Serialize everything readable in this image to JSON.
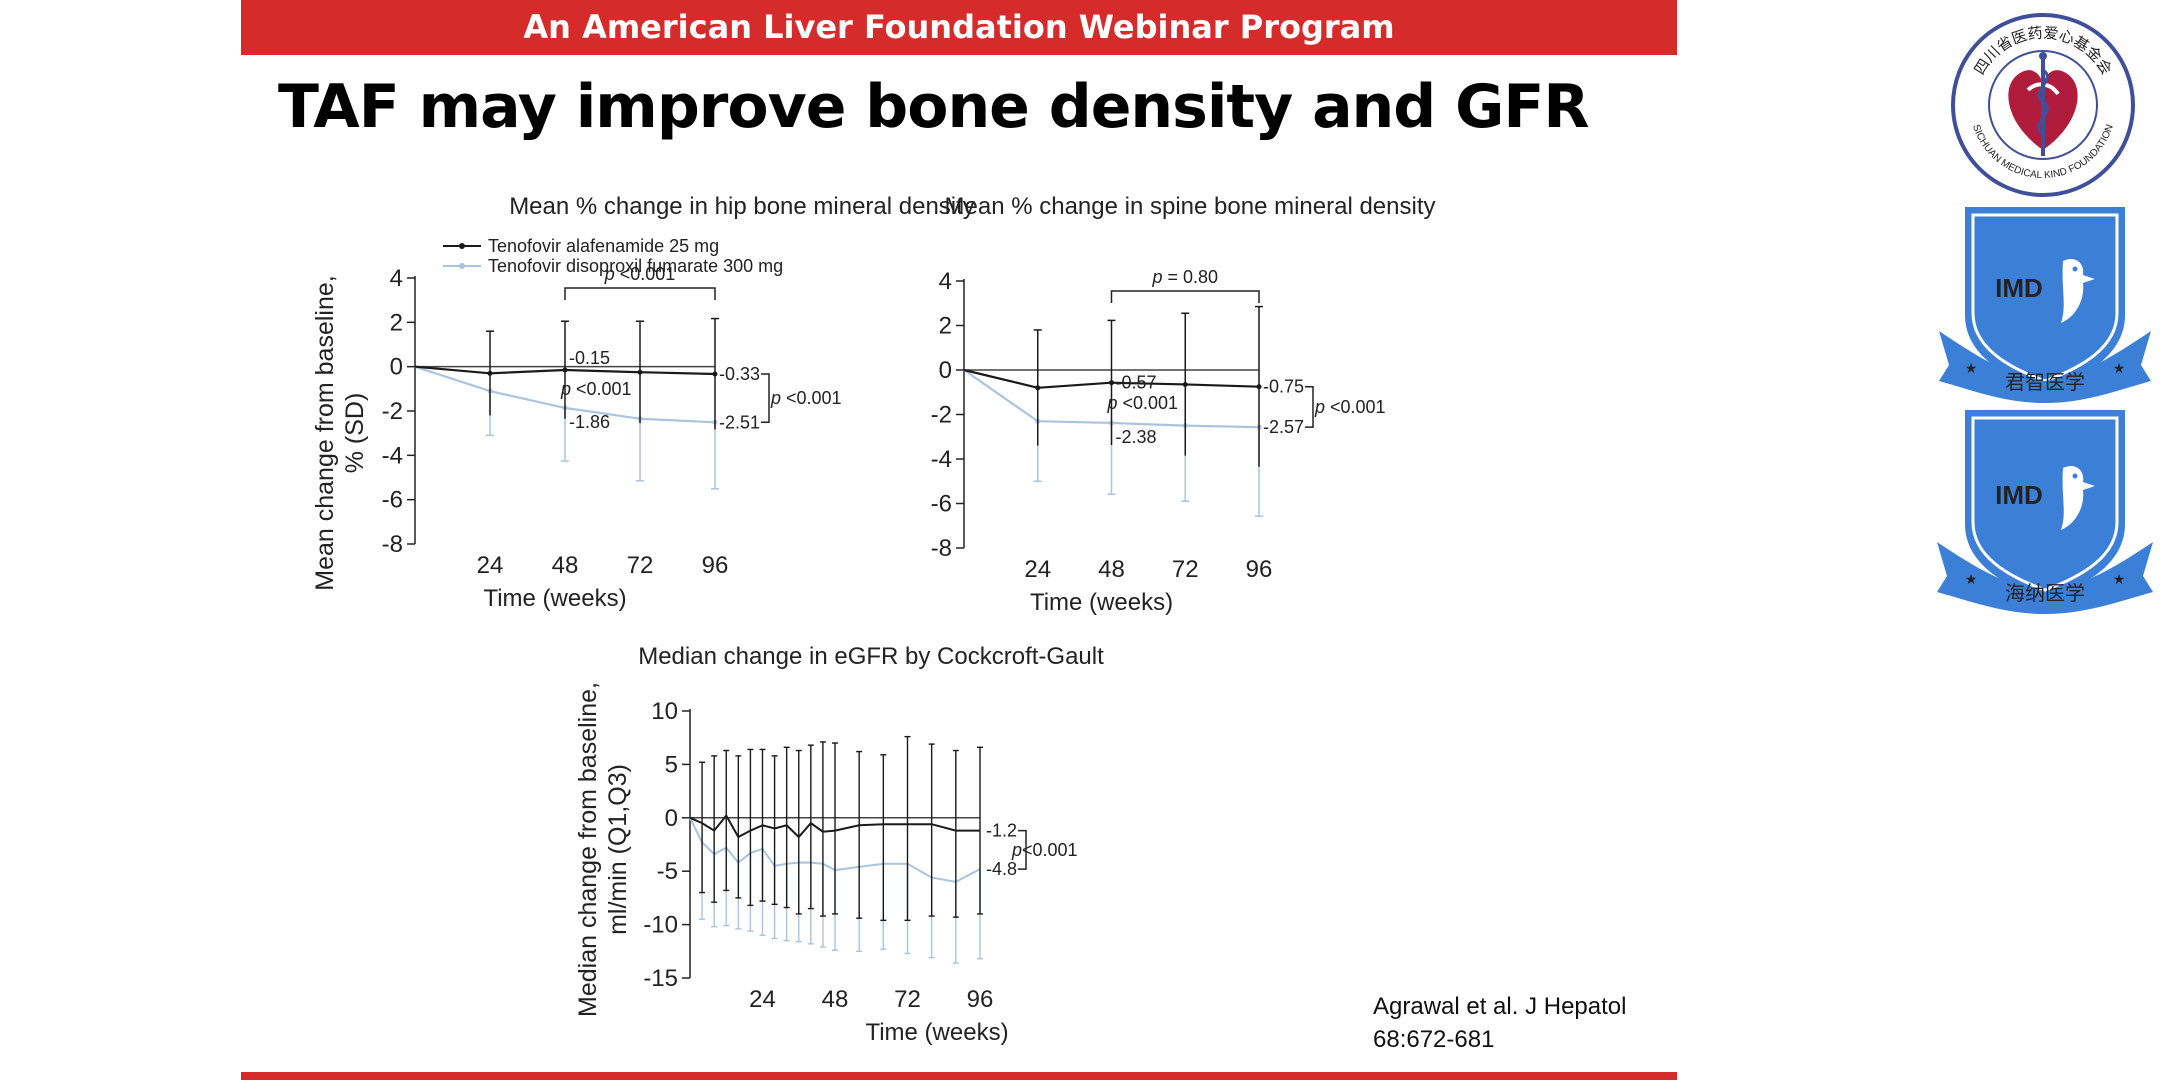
{
  "banner": {
    "text": "An American Liver Foundation Webinar Program"
  },
  "slide_title": "TAF may improve bone density and GFR",
  "citation": {
    "line1": "Agrawal et al. J Hepatol",
    "line2": "68:672-681"
  },
  "colors": {
    "banner": "#d52b2b",
    "taf": "#1a1a1a",
    "tdf": "#a9c4dc",
    "logo_blue": "#3b7fd6",
    "logo_red": "#b01c3c"
  },
  "legend": {
    "taf": "Tenofovir alafenamide 25 mg",
    "tdf": "Tenofovir disoproxil fumarate 300 mg"
  },
  "logos": {
    "sichuan": {
      "top_text": "四川省医药爱心基金会",
      "bottom_text": "SICHUAN MEDICAL KIND FOUNDATION"
    },
    "imd1": {
      "mark": "IMD",
      "ribbon": "君智医学"
    },
    "imd2": {
      "mark": "IMD",
      "ribbon": "海纳医学"
    }
  },
  "chart_data": [
    {
      "type": "line",
      "title": "Mean % change in hip bone mineral density",
      "xlabel": "Time (weeks)",
      "ylabel": "Mean change from baseline, % (SD)",
      "xlim": [
        0,
        96
      ],
      "ylim": [
        -8,
        4
      ],
      "xticks": [
        24,
        48,
        72,
        96
      ],
      "yticks": [
        4,
        2,
        0,
        -2,
        -4,
        -6,
        -8
      ],
      "series": [
        {
          "name": "Tenofovir alafenamide 25 mg",
          "x": [
            0,
            24,
            48,
            72,
            96
          ],
          "y": [
            0,
            -0.3,
            -0.15,
            -0.25,
            -0.33
          ],
          "err": [
            0,
            1.9,
            2.2,
            2.3,
            2.5
          ]
        },
        {
          "name": "Tenofovir disoproxil fumarate 300 mg",
          "x": [
            0,
            24,
            48,
            72,
            96
          ],
          "y": [
            0,
            -1.1,
            -1.86,
            -2.35,
            -2.51
          ],
          "err": [
            0,
            2.0,
            2.4,
            2.8,
            3.0
          ]
        }
      ],
      "annotations": {
        "taf_end": "-0.33",
        "tdf_end": "-2.51",
        "taf_48": "-0.15",
        "tdf_48": "-1.86",
        "p48_italic": "p",
        "p48_rest": " <0.001",
        "p96_italic": "p",
        "p96_rest": " <0.001",
        "ptop_italic": "p",
        "ptop_rest": " <0.001"
      }
    },
    {
      "type": "line",
      "title": "Mean % change in spine bone mineral density",
      "xlabel": "Time (weeks)",
      "ylabel": "",
      "xlim": [
        0,
        96
      ],
      "ylim": [
        -8,
        4
      ],
      "xticks": [
        24,
        48,
        72,
        96
      ],
      "yticks": [
        4,
        2,
        0,
        -2,
        -4,
        -6,
        -8
      ],
      "series": [
        {
          "name": "Tenofovir alafenamide 25 mg",
          "x": [
            0,
            24,
            48,
            72,
            96
          ],
          "y": [
            0,
            -0.8,
            -0.57,
            -0.65,
            -0.75
          ],
          "err": [
            0,
            2.6,
            2.8,
            3.2,
            3.6
          ]
        },
        {
          "name": "Tenofovir disoproxil fumarate 300 mg",
          "x": [
            0,
            24,
            48,
            72,
            96
          ],
          "y": [
            0,
            -2.3,
            -2.38,
            -2.5,
            -2.57
          ],
          "err": [
            0,
            2.7,
            3.2,
            3.4,
            4.0
          ]
        }
      ],
      "annotations": {
        "taf_end": "-0.75",
        "tdf_end": "-2.57",
        "taf_48": "-0.57",
        "tdf_48": "-2.38",
        "p48_italic": "p",
        "p48_rest": " <0.001",
        "p96_italic": "p",
        "p96_rest": " <0.001",
        "ptop_italic": "p",
        "ptop_rest": " = 0.80"
      }
    },
    {
      "type": "line",
      "title": "Median change in eGFR by Cockcroft-Gault",
      "xlabel": "Time (weeks)",
      "ylabel": "Median change from baseline, ml/min (Q1,Q3)",
      "xlim": [
        0,
        96
      ],
      "ylim": [
        -15,
        10
      ],
      "xticks": [
        24,
        48,
        72,
        96
      ],
      "yticks": [
        10,
        5,
        0,
        -5,
        -10,
        -15
      ],
      "series": [
        {
          "name": "Tenofovir alafenamide 25 mg",
          "x": [
            0,
            4,
            8,
            12,
            16,
            20,
            24,
            28,
            32,
            36,
            40,
            44,
            48,
            56,
            64,
            72,
            80,
            88,
            96
          ],
          "y": [
            0,
            -0.5,
            -1.2,
            0.2,
            -1.8,
            -1.2,
            -0.7,
            -1.0,
            -0.7,
            -1.8,
            -0.5,
            -1.3,
            -1.2,
            -0.7,
            -0.6,
            -0.6,
            -0.6,
            -1.2,
            -1.2
          ],
          "hi": [
            0,
            5.2,
            5.8,
            6.3,
            5.8,
            6.4,
            6.4,
            5.8,
            6.6,
            6.3,
            6.8,
            7.1,
            7.0,
            6.2,
            5.9,
            7.6,
            6.9,
            6.3,
            6.6
          ],
          "lo": [
            0,
            -7.0,
            -7.9,
            -6.8,
            -7.5,
            -8.2,
            -7.8,
            -8.1,
            -8.4,
            -9.0,
            -8.5,
            -9.2,
            -9.0,
            -9.4,
            -9.6,
            -9.6,
            -9.2,
            -9.3,
            -9.0
          ]
        },
        {
          "name": "Tenofovir disoproxil fumarate 300 mg",
          "x": [
            0,
            4,
            8,
            12,
            16,
            20,
            24,
            28,
            32,
            36,
            40,
            44,
            48,
            56,
            64,
            72,
            80,
            88,
            96
          ],
          "y": [
            0,
            -2.3,
            -3.4,
            -2.8,
            -4.2,
            -3.3,
            -2.9,
            -4.5,
            -4.3,
            -4.2,
            -4.2,
            -4.3,
            -4.9,
            -4.6,
            -4.3,
            -4.3,
            -5.6,
            -6.0,
            -4.8
          ],
          "hi": [
            0,
            -0.6,
            -1.4,
            -1.2,
            -1.8,
            -1.2,
            -0.8,
            -1.9,
            -1.8,
            -1.7,
            -1.7,
            -1.8,
            -2.0,
            -1.8,
            -1.6,
            -1.6,
            -2.6,
            -3.0,
            -1.9
          ],
          "lo": [
            0,
            -9.5,
            -10.2,
            -10.1,
            -10.4,
            -10.6,
            -11.0,
            -11.3,
            -11.5,
            -11.6,
            -11.8,
            -12.1,
            -12.4,
            -12.5,
            -12.3,
            -12.7,
            -13.1,
            -13.6,
            -13.2
          ]
        }
      ],
      "annotations": {
        "taf_end": "-1.2",
        "tdf_end": "-4.8",
        "p_italic": "p",
        "p_rest": "<0.001"
      }
    }
  ]
}
